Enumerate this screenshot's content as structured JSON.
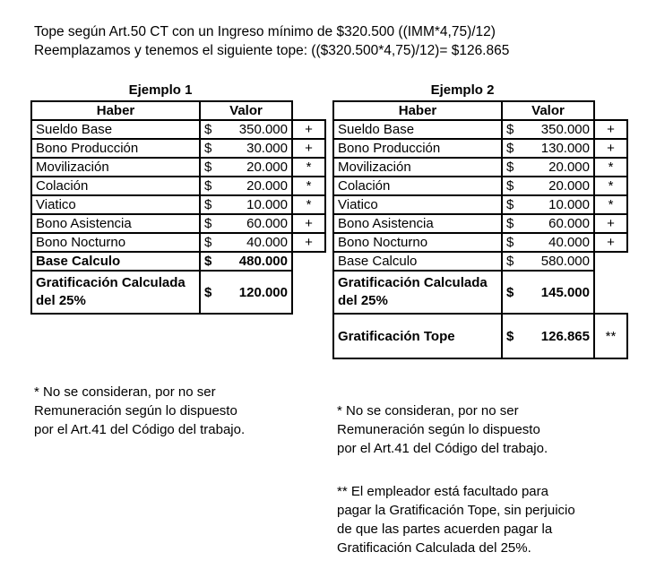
{
  "intro": [
    "Tope según Art.50 CT con un Ingreso mínimo de $320.500 ((IMM*4,75)/12)",
    "Reemplazamos y tenemos el siguiente tope: (($320.500*4,75)/12)= $126.865"
  ],
  "headers": {
    "haber": "Haber",
    "valor": "Valor"
  },
  "currency": "$",
  "ex1": {
    "title": "Ejemplo 1",
    "rows": [
      {
        "label": "Sueldo Base",
        "value": "350.000",
        "mark": "+"
      },
      {
        "label": "Bono Producción",
        "value": "30.000",
        "mark": "+"
      },
      {
        "label": "Movilización",
        "value": "20.000",
        "mark": "*"
      },
      {
        "label": "Colación",
        "value": "20.000",
        "mark": "*"
      },
      {
        "label": "Viatico",
        "value": "10.000",
        "mark": "*"
      },
      {
        "label": "Bono Asistencia",
        "value": "60.000",
        "mark": "+"
      },
      {
        "label": "Bono Nocturno",
        "value": "40.000",
        "mark": "+"
      }
    ],
    "base": {
      "label": "Base Calculo",
      "value": "480.000"
    },
    "grat": {
      "label": "Gratificación Calculada del 25%",
      "value": "120.000"
    }
  },
  "ex2": {
    "title": "Ejemplo 2",
    "rows": [
      {
        "label": "Sueldo Base",
        "value": "350.000",
        "mark": "+"
      },
      {
        "label": "Bono Producción",
        "value": "130.000",
        "mark": "+"
      },
      {
        "label": "Movilización",
        "value": "20.000",
        "mark": "*"
      },
      {
        "label": "Colación",
        "value": "20.000",
        "mark": "*"
      },
      {
        "label": "Viatico",
        "value": "10.000",
        "mark": "*"
      },
      {
        "label": "Bono Asistencia",
        "value": "60.000",
        "mark": "+"
      },
      {
        "label": "Bono Nocturno",
        "value": "40.000",
        "mark": "+"
      }
    ],
    "base": {
      "label": "Base Calculo",
      "value": "580.000"
    },
    "grat": {
      "label": "Gratificación Calculada del 25%",
      "value": "145.000"
    },
    "tope": {
      "label": "Gratificación Tope",
      "value": "126.865",
      "mark": "**"
    }
  },
  "note1": [
    "* No se consideran, por no ser",
    "Remuneración según lo dispuesto",
    "por el Art.41 del Código del trabajo."
  ],
  "note2": [
    "** El empleador está facultado para",
    "pagar la Gratificación Tope, sin perjuicio",
    "de que las partes acuerden pagar la",
    "Gratificación Calculada del 25%."
  ]
}
